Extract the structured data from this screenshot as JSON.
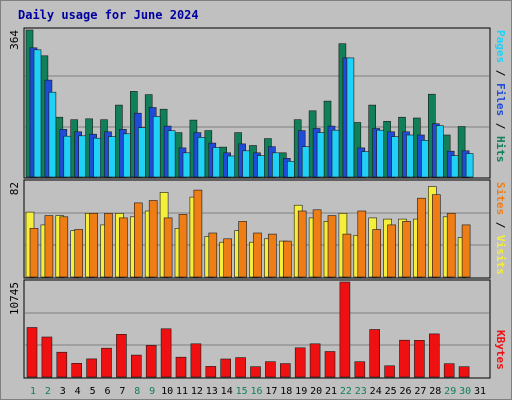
{
  "chart_data": {
    "type": "bar",
    "title": "Daily usage for June 2024",
    "categories": [
      "1",
      "2",
      "3",
      "4",
      "5",
      "6",
      "7",
      "8",
      "9",
      "10",
      "11",
      "12",
      "13",
      "14",
      "15",
      "16",
      "17",
      "18",
      "19",
      "20",
      "21",
      "22",
      "23",
      "24",
      "25",
      "26",
      "27",
      "28",
      "29",
      "30",
      "31"
    ],
    "weekend_days": [
      "1",
      "2",
      "8",
      "9",
      "15",
      "16",
      "22",
      "23",
      "29",
      "30"
    ],
    "panels": [
      {
        "ymax_label": "364",
        "ylim": [
          0,
          364
        ],
        "axis_label": {
          "pages": "Pages",
          "files": "Files",
          "hits": "Hits",
          "sep": " / "
        },
        "series": [
          {
            "name": "Hits",
            "color": "#117f57",
            "values": [
              364,
              300,
              148,
              142,
              144,
              142,
              178,
              212,
              204,
              168,
              110,
              141,
              115,
              74,
              110,
              78,
              95,
              60,
              142,
              164,
              188,
              330,
              135,
              178,
              138,
              148,
              146,
              205,
              104,
              125,
              0
            ]
          },
          {
            "name": "Files",
            "color": "#1f4bd9",
            "values": [
              320,
              240,
              118,
              112,
              106,
              112,
              118,
              158,
              172,
              126,
              72,
              110,
              84,
              60,
              82,
              60,
              75,
              46,
              115,
              120,
              126,
              295,
              72,
              120,
              112,
              112,
              104,
              132,
              64,
              65,
              0
            ]
          },
          {
            "name": "Pages",
            "color": "#1fd1f5",
            "values": [
              315,
              210,
              101,
              102,
              96,
              100,
              107,
              122,
              150,
              115,
              60,
              98,
              73,
              52,
              65,
              53,
              60,
              39,
              75,
              110,
              116,
              295,
              63,
              116,
              100,
              104,
              91,
              127,
              53,
              58,
              0
            ]
          }
        ]
      },
      {
        "ymax_label": "82",
        "ylim": [
          0,
          82
        ],
        "axis_label": {
          "sites": "Sites",
          "visits": "Visits",
          "sep": " / "
        },
        "series": [
          {
            "name": "Visits",
            "color": "#f5ee3b",
            "values": [
              56,
              45,
              53,
              40,
              55,
              45,
              55,
              52,
              57,
              73,
              42,
              69,
              35,
              30,
              40,
              30,
              33,
              31,
              62,
              51,
              48,
              55,
              36,
              51,
              50,
              50,
              50,
              78,
              52,
              34,
              0
            ]
          },
          {
            "name": "Sites",
            "color": "#ef7d16",
            "values": [
              42,
              53,
              52,
              41,
              55,
              55,
              51,
              64,
              66,
              51,
              54,
              75,
              38,
              33,
              48,
              38,
              37,
              31,
              57,
              58,
              53,
              37,
              57,
              41,
              45,
              48,
              68,
              71,
              55,
              45,
              0
            ]
          }
        ]
      },
      {
        "ymax_label": "10745",
        "ylim": [
          0,
          10745
        ],
        "axis_label": {
          "kbytes": "KBytes"
        },
        "series": [
          {
            "name": "KBytes",
            "color": "#ef1111",
            "values": [
              5600,
              4520,
              2805,
              1545,
              2050,
              3262,
              4830,
              2480,
              3578,
              5455,
              2244,
              3750,
              1200,
              2040,
              2190,
              1168,
              1731,
              1514,
              3300,
              3750,
              2885,
              10745,
              1731,
              5375,
              1268,
              4160,
              4150,
              4870,
              1500,
              1170,
              0
            ]
          }
        ]
      }
    ],
    "grid": true
  }
}
